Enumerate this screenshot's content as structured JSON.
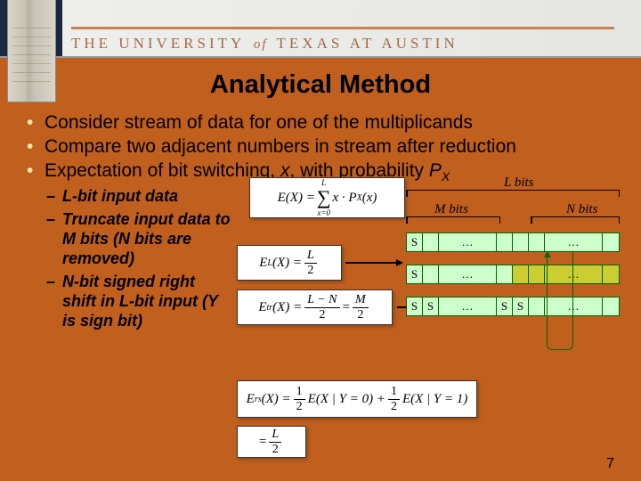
{
  "header": {
    "university": "THE UNIVERSITY",
    "of": "of",
    "university2": "TEXAS AT AUSTIN"
  },
  "title": "Analytical Method",
  "bullets": {
    "b1": "Consider stream of data for one of the multiplicands",
    "b2": "Compare two adjacent numbers in stream after reduction",
    "b3a": "Expectation of bit switching, ",
    "b3x": "x",
    "b3b": ", with probability ",
    "b3p": "P",
    "b3px": "X"
  },
  "sub": {
    "s1a": "L",
    "s1b": "-bit input data",
    "s2a": "Truncate input data to ",
    "s2m": "M",
    "s2b": " bits (",
    "s2n": "N",
    "s2c": " bits are removed)",
    "s3n": "N",
    "s3a": "-bit signed right shift in ",
    "s3l": "L",
    "s3b": "-bit input (",
    "s3y": "Y",
    "s3c": " is sign bit)"
  },
  "formulas": {
    "f1": {
      "lhs": "E(X) = ",
      "sum_top": "L",
      "sum_bot": "x=0",
      "rhs": " x · P",
      "sub": "X",
      "rhs2": "(x)"
    },
    "f2": {
      "lhs": "E",
      "sub": "L",
      "mid": "(X) = ",
      "num": "L",
      "den": "2"
    },
    "f3": {
      "lhs": "E",
      "sub": "tr",
      "mid": "(X) = ",
      "num": "L − N",
      "den": "2",
      "eq": " = ",
      "num2": "M",
      "den2": "2"
    },
    "f4": {
      "lhs": "E",
      "sub": "rs",
      "mid": "(X) = ",
      "num1": "1",
      "den1": "2",
      "t1": " E(X | Y = 0) + ",
      "num2": "1",
      "den2": "2",
      "t2": " E(X | Y = 1)"
    },
    "f5": {
      "eq": "= ",
      "num": "L",
      "den": "2"
    }
  },
  "diagram": {
    "l_bits": "L bits",
    "m_bits": "M bits",
    "n_bits": "N bits",
    "S": "S",
    "dots": "…"
  },
  "pagenum": "7"
}
